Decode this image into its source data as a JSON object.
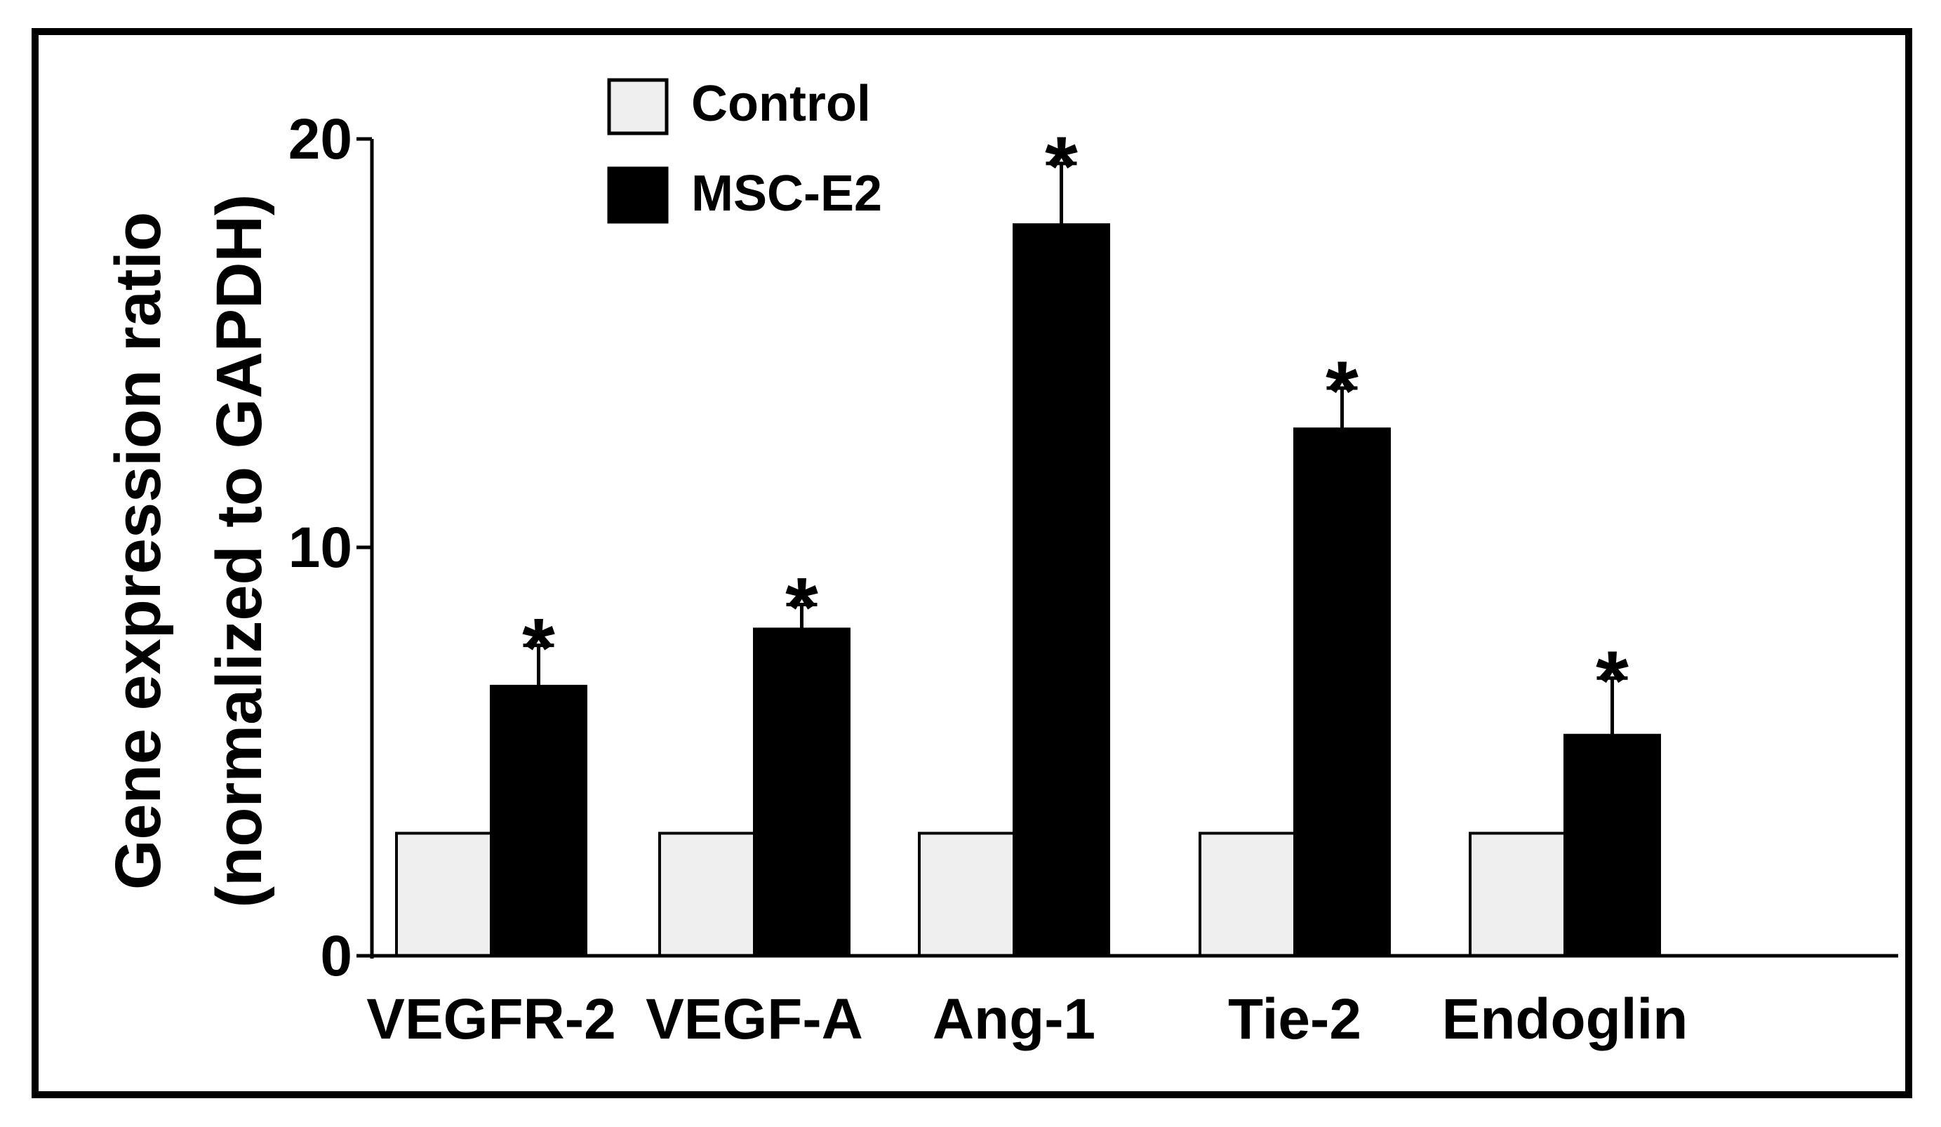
{
  "chart_data": {
    "type": "bar",
    "title": "",
    "xlabel": "",
    "ylabel": [
      "Gene expression ratio",
      "(normalized to GAPDH)"
    ],
    "categories": [
      "VEGFR-2",
      "VEGF-A",
      "Ang-1",
      "Tie-2",
      "Endoglin"
    ],
    "yticks": [
      {
        "value": 0,
        "label": "0"
      },
      {
        "value": 10,
        "label": "10"
      },
      {
        "value": 20,
        "label": "20"
      }
    ],
    "ylim": [
      0,
      20
    ],
    "grid": false,
    "legend_position": "top-center",
    "series": [
      {
        "name": "Control",
        "color": "#efefef",
        "values": [
          3.0,
          3.0,
          3.0,
          3.0,
          3.0
        ],
        "errors": [
          0,
          0,
          0,
          0,
          0
        ],
        "significance": [
          "",
          "",
          "",
          "",
          ""
        ]
      },
      {
        "name": "MSC-E2",
        "color": "#000000",
        "values": [
          6.6,
          8.0,
          17.9,
          12.9,
          5.4
        ],
        "errors": [
          1.0,
          0.6,
          1.5,
          1.0,
          1.4
        ],
        "significance": [
          "*",
          "*",
          "*",
          "*",
          "*"
        ]
      }
    ]
  }
}
